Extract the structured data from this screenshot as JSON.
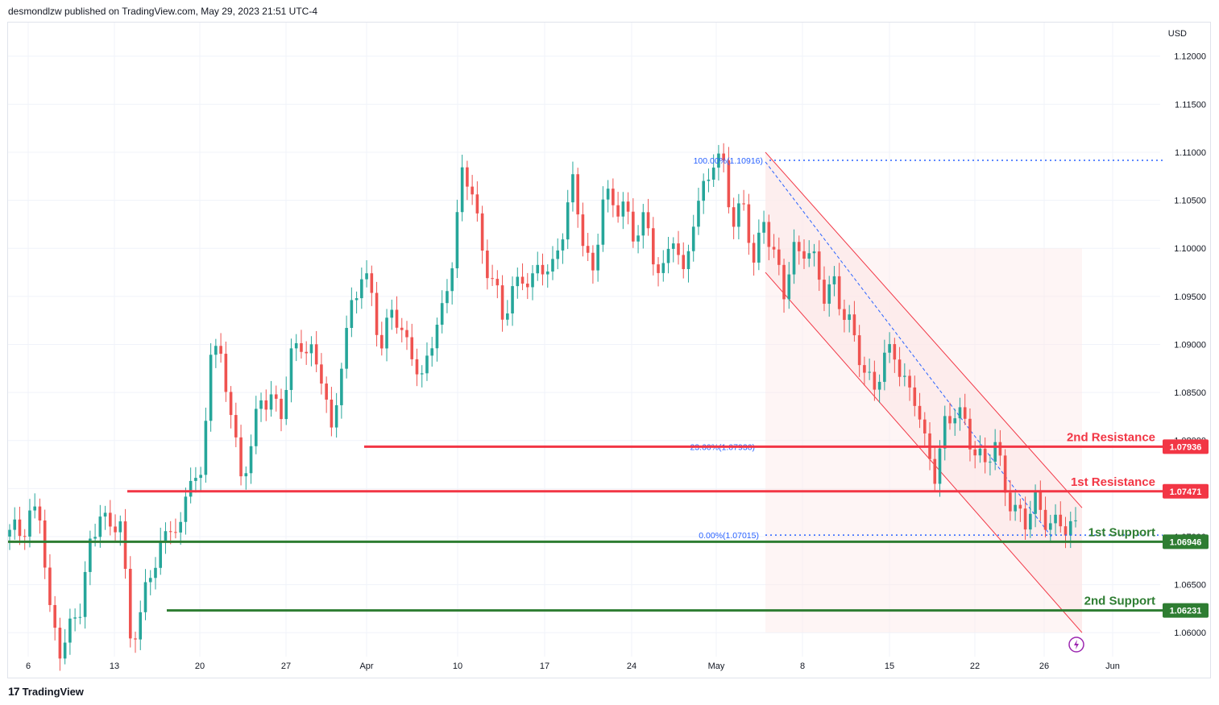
{
  "header": {
    "published": "desmondlzw published on TradingView.com, May 29, 2023 21:51 UTC-4"
  },
  "footer": {
    "brand": "TradingView",
    "logo": "tradingview-logo-icon"
  },
  "colors": {
    "up": "#26a69a",
    "down": "#ef5350",
    "resistance": "#f23645",
    "support": "#2e7d32",
    "fib": "#2962ff",
    "channel": "#f23645",
    "channelFill": "#fce8e8",
    "grid": "#f0f3fa"
  },
  "chart_data": {
    "type": "candlestick",
    "symbol_currency": "USD",
    "ylim": [
      1.0575,
      1.1235
    ],
    "y_ticks": [
      "1.12000",
      "1.11500",
      "1.11000",
      "1.10500",
      "1.10000",
      "1.09500",
      "1.09000",
      "1.08500",
      "1.08000",
      "1.07500",
      "1.07000",
      "1.06500",
      "1.06000"
    ],
    "x_ticks": [
      "6",
      "13",
      "20",
      "27",
      "Apr",
      "10",
      "17",
      "24",
      "May",
      "8",
      "15",
      "22",
      "26",
      "Jun"
    ],
    "levels": [
      {
        "name": "2nd Resistance",
        "value": 1.07936,
        "label": "1.07936",
        "kind": "resistance"
      },
      {
        "name": "1st Resistance",
        "value": 1.07471,
        "label": "1.07471",
        "kind": "resistance"
      },
      {
        "name": "1st Support",
        "value": 1.06946,
        "label": "1.06946",
        "kind": "support"
      },
      {
        "name": "2nd Support",
        "value": 1.06231,
        "label": "1.06231",
        "kind": "support"
      }
    ],
    "fib": [
      {
        "label": "100.00%(1.10916)",
        "value": 1.10916
      },
      {
        "label": "23.60%(1.07936)",
        "value": 1.07936
      },
      {
        "label": "0.00%(1.07015)",
        "value": 1.07015
      }
    ],
    "price_path": [
      [
        0,
        1.07
      ],
      [
        2,
        1.0705
      ],
      [
        4,
        1.0728
      ],
      [
        6,
        1.072
      ],
      [
        8,
        1.0615
      ],
      [
        10,
        1.059
      ],
      [
        12,
        1.0605
      ],
      [
        14,
        1.062
      ],
      [
        16,
        1.069
      ],
      [
        18,
        1.0735
      ],
      [
        20,
        1.07
      ],
      [
        22,
        1.0715
      ],
      [
        24,
        1.06
      ],
      [
        26,
        1.062
      ],
      [
        28,
        1.0655
      ],
      [
        30,
        1.069
      ],
      [
        32,
        1.072
      ],
      [
        34,
        1.07
      ],
      [
        36,
        1.0765
      ],
      [
        38,
        1.076
      ],
      [
        40,
        1.09
      ],
      [
        42,
        1.0875
      ],
      [
        44,
        1.0835
      ],
      [
        46,
        1.0765
      ],
      [
        48,
        1.079
      ],
      [
        50,
        1.084
      ],
      [
        52,
        1.085
      ],
      [
        54,
        1.083
      ],
      [
        56,
        1.088
      ],
      [
        58,
        1.0905
      ],
      [
        60,
        1.0895
      ],
      [
        62,
        1.0865
      ],
      [
        64,
        1.08
      ],
      [
        66,
        1.089
      ],
      [
        68,
        1.094
      ],
      [
        70,
        1.0965
      ],
      [
        72,
        1.0955
      ],
      [
        74,
        1.09
      ],
      [
        76,
        1.0935
      ],
      [
        78,
        1.0905
      ],
      [
        80,
        1.09
      ],
      [
        82,
        1.086
      ],
      [
        84,
        1.09
      ],
      [
        86,
        1.0935
      ],
      [
        88,
        1.0995
      ],
      [
        90,
        1.107
      ],
      [
        92,
        1.106
      ],
      [
        94,
        1.1
      ],
      [
        96,
        1.097
      ],
      [
        98,
        1.092
      ],
      [
        100,
        1.096
      ],
      [
        102,
        1.0975
      ],
      [
        104,
        1.096
      ],
      [
        106,
        1.098
      ],
      [
        108,
        1.0985
      ],
      [
        110,
        1.102
      ],
      [
        112,
        1.106
      ],
      [
        114,
        1.1015
      ],
      [
        116,
        1.0975
      ],
      [
        118,
        1.105
      ],
      [
        120,
        1.104
      ],
      [
        122,
        1.1055
      ],
      [
        124,
        1.101
      ],
      [
        126,
        1.1025
      ],
      [
        128,
        1.0995
      ],
      [
        130,
        1.098
      ],
      [
        132,
        1.101
      ],
      [
        134,
        1.0965
      ],
      [
        136,
        1.104
      ],
      [
        138,
        1.106
      ],
      [
        140,
        1.1085
      ],
      [
        142,
        1.109
      ],
      [
        144,
        1.103
      ],
      [
        146,
        1.104
      ],
      [
        148,
        1.098
      ],
      [
        150,
        1.104
      ],
      [
        152,
        1.099
      ],
      [
        154,
        1.095
      ],
      [
        156,
        1.1
      ],
      [
        158,
        1.1005
      ],
      [
        160,
        1.098
      ],
      [
        162,
        1.095
      ],
      [
        164,
        1.097
      ],
      [
        166,
        1.093
      ],
      [
        168,
        1.09
      ],
      [
        170,
        1.0875
      ],
      [
        172,
        1.086
      ],
      [
        174,
        1.088
      ],
      [
        176,
        1.089
      ],
      [
        178,
        1.0865
      ],
      [
        180,
        1.0845
      ],
      [
        182,
        1.079
      ],
      [
        184,
        1.077
      ],
      [
        186,
        1.082
      ],
      [
        188,
        1.0825
      ],
      [
        190,
        1.0815
      ],
      [
        192,
        1.0795
      ],
      [
        194,
        1.0775
      ],
      [
        196,
        1.079
      ],
      [
        198,
        1.0755
      ],
      [
        200,
        1.073
      ],
      [
        202,
        1.071
      ],
      [
        204,
        1.0735
      ],
      [
        206,
        1.0725
      ],
      [
        208,
        1.071
      ],
      [
        210,
        1.0705
      ],
      [
        212,
        1.0713
      ]
    ],
    "channel": {
      "upper": [
        [
          140,
          1.11
        ],
        [
          216,
          1.073
        ]
      ],
      "lower": [
        [
          140,
          1.0975
        ],
        [
          216,
          1.06
        ]
      ]
    },
    "x_range": [
      0,
      230
    ]
  }
}
